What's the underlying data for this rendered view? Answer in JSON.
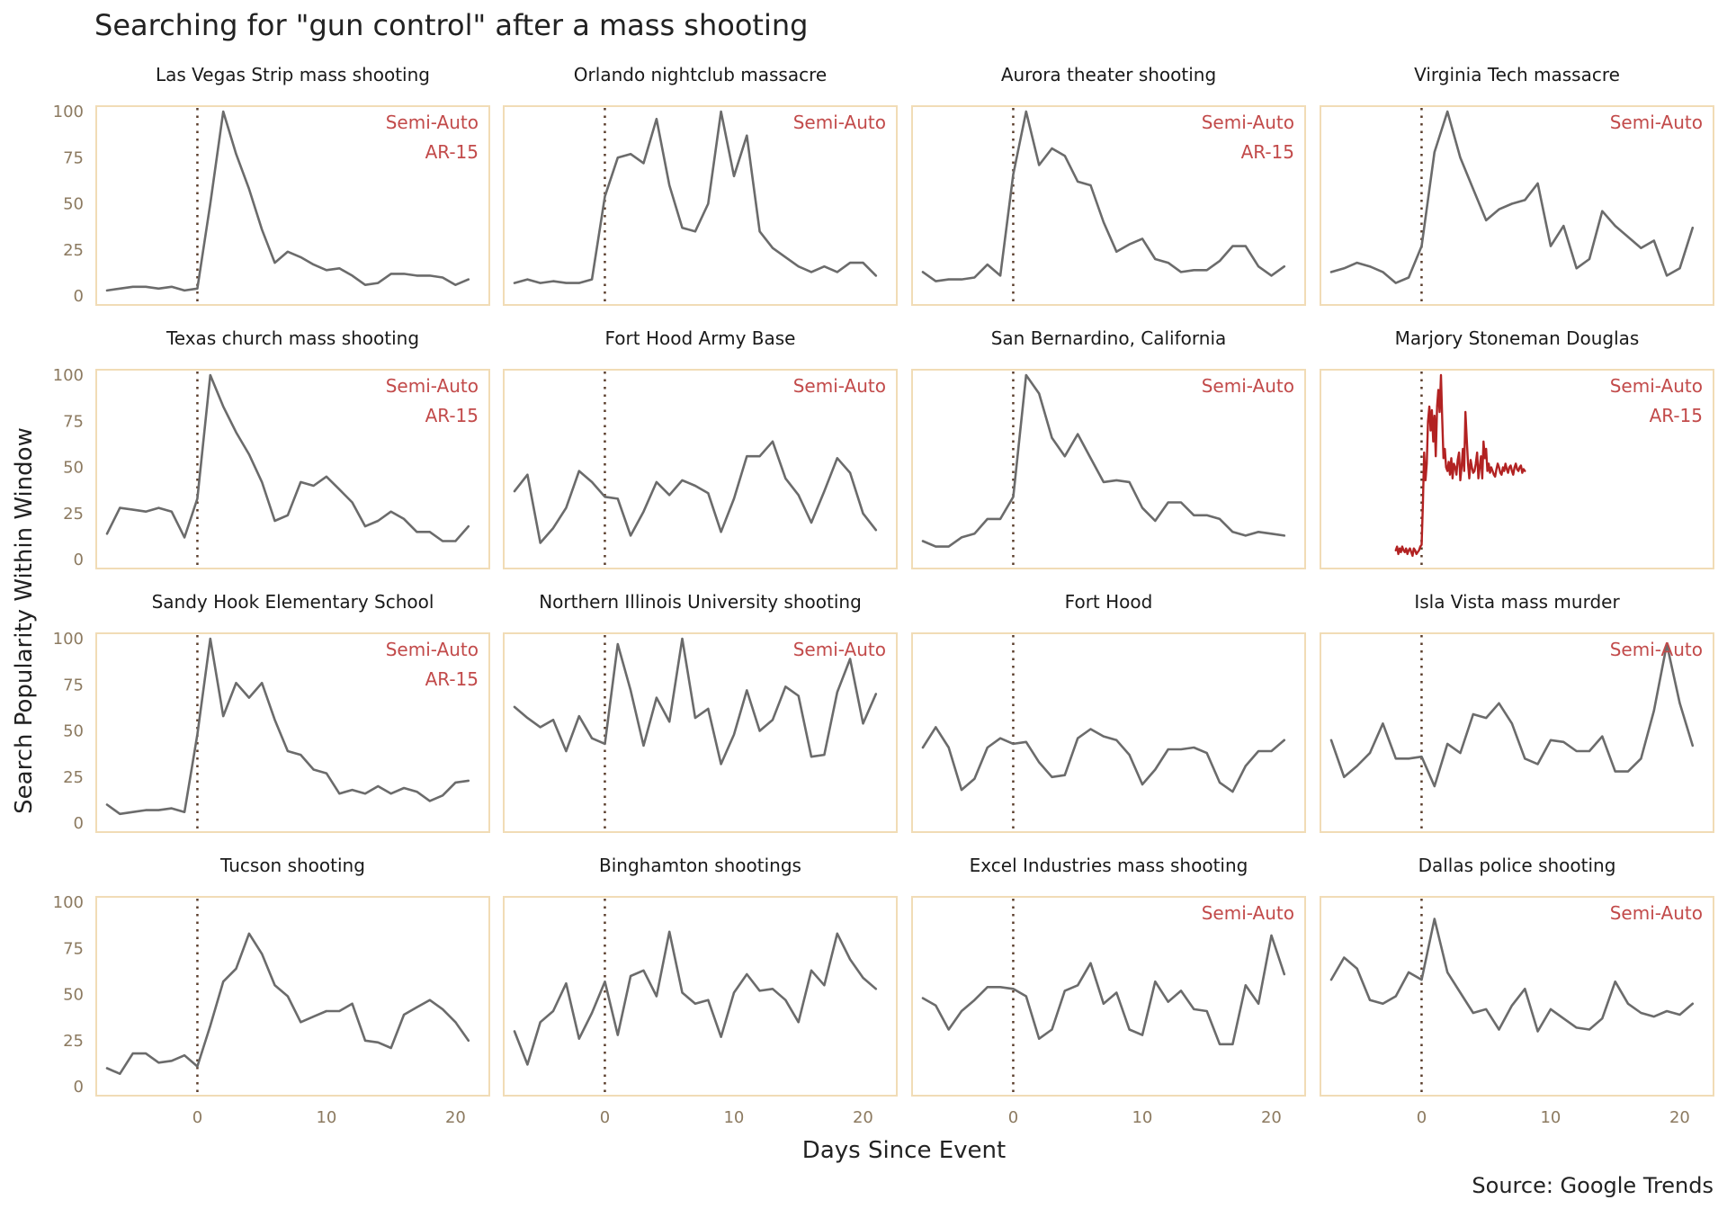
{
  "title": "Searching for \"gun control\" after a mass shooting",
  "caption": "Source: Google Trends",
  "colors": {
    "line": "#6b6b6b",
    "highlight": "#b22222",
    "note": "#c24a4a",
    "panel_border": "#f1dcb6",
    "tick_text": "#8c7a60",
    "event_marker": "#5a3d2b"
  },
  "chart_data": {
    "type": "line",
    "layout": "small-multiples",
    "xlabel": "Days Since Event",
    "ylabel": "Search Popularity Within Window",
    "xlim": [
      -8,
      22
    ],
    "ylim": [
      0,
      105
    ],
    "xticks": [
      0,
      10,
      20
    ],
    "yticks": [
      0,
      25,
      50,
      75,
      100
    ],
    "event_marker_x": 0,
    "panels": [
      {
        "title": "Las Vegas Strip mass shooting",
        "notes": [
          "Semi-Auto",
          "AR-15"
        ],
        "x": [
          -7,
          -6,
          -5,
          -4,
          -3,
          -2,
          -1,
          0,
          1,
          2,
          3,
          4,
          5,
          6,
          7,
          8,
          9,
          10,
          11,
          12,
          13,
          14,
          15,
          16,
          17,
          18,
          19,
          20,
          21
        ],
        "y": [
          3,
          4,
          5,
          5,
          4,
          5,
          3,
          4,
          50,
          100,
          77,
          58,
          36,
          18,
          24,
          21,
          17,
          14,
          15,
          11,
          6,
          7,
          12,
          12,
          11,
          11,
          10,
          6,
          9
        ]
      },
      {
        "title": "Orlando nightclub massacre",
        "notes": [
          "Semi-Auto"
        ],
        "x": [
          -7,
          -6,
          -5,
          -4,
          -3,
          -2,
          -1,
          0,
          1,
          2,
          3,
          4,
          5,
          6,
          7,
          8,
          9,
          10,
          11,
          12,
          13,
          14,
          15,
          16,
          17,
          18,
          19,
          20,
          21
        ],
        "y": [
          7,
          9,
          7,
          8,
          7,
          7,
          9,
          54,
          75,
          77,
          72,
          96,
          60,
          37,
          35,
          50,
          100,
          65,
          87,
          35,
          26,
          21,
          16,
          13,
          16,
          13,
          18,
          18,
          11
        ]
      },
      {
        "title": "Aurora theater shooting",
        "notes": [
          "Semi-Auto",
          "AR-15"
        ],
        "x": [
          -7,
          -6,
          -5,
          -4,
          -3,
          -2,
          -1,
          0,
          1,
          2,
          3,
          4,
          5,
          6,
          7,
          8,
          9,
          10,
          11,
          12,
          13,
          14,
          15,
          16,
          17,
          18,
          19,
          20,
          21
        ],
        "y": [
          13,
          8,
          9,
          9,
          10,
          17,
          11,
          66,
          100,
          71,
          80,
          76,
          62,
          60,
          40,
          24,
          28,
          31,
          20,
          18,
          13,
          14,
          14,
          19,
          27,
          27,
          16,
          11,
          16
        ]
      },
      {
        "title": "Virginia Tech massacre",
        "notes": [
          "Semi-Auto"
        ],
        "x": [
          -7,
          -6,
          -5,
          -4,
          -3,
          -2,
          -1,
          0,
          1,
          2,
          3,
          4,
          5,
          6,
          7,
          8,
          9,
          10,
          11,
          12,
          13,
          14,
          15,
          16,
          17,
          18,
          19,
          20,
          21
        ],
        "y": [
          13,
          15,
          18,
          16,
          13,
          7,
          10,
          27,
          78,
          100,
          75,
          58,
          41,
          47,
          50,
          52,
          61,
          27,
          38,
          15,
          20,
          46,
          38,
          32,
          26,
          30,
          11,
          15,
          37
        ]
      },
      {
        "title": "Texas church mass shooting",
        "notes": [
          "Semi-Auto",
          "AR-15"
        ],
        "x": [
          -7,
          -6,
          -5,
          -4,
          -3,
          -2,
          -1,
          0,
          1,
          2,
          3,
          4,
          5,
          6,
          7,
          8,
          9,
          10,
          11,
          12,
          13,
          14,
          15,
          16,
          17,
          18,
          19,
          20,
          21
        ],
        "y": [
          14,
          28,
          27,
          26,
          28,
          26,
          12,
          33,
          100,
          83,
          69,
          57,
          42,
          21,
          24,
          42,
          40,
          45,
          38,
          31,
          18,
          21,
          26,
          22,
          15,
          15,
          10,
          10,
          18
        ]
      },
      {
        "title": "Fort Hood Army Base",
        "notes": [
          "Semi-Auto"
        ],
        "x": [
          -7,
          -6,
          -5,
          -4,
          -3,
          -2,
          -1,
          0,
          1,
          2,
          3,
          4,
          5,
          6,
          7,
          8,
          9,
          10,
          11,
          12,
          13,
          14,
          15,
          16,
          17,
          18,
          19,
          20,
          21
        ],
        "y": [
          37,
          46,
          9,
          17,
          28,
          48,
          42,
          34,
          33,
          13,
          26,
          42,
          35,
          43,
          40,
          36,
          15,
          33,
          56,
          56,
          64,
          44,
          35,
          20,
          37,
          55,
          47,
          25,
          16
        ]
      },
      {
        "title": "San Bernardino, California",
        "notes": [
          "Semi-Auto"
        ],
        "x": [
          -7,
          -6,
          -5,
          -4,
          -3,
          -2,
          -1,
          0,
          1,
          2,
          3,
          4,
          5,
          6,
          7,
          8,
          9,
          10,
          11,
          12,
          13,
          14,
          15,
          16,
          17,
          18,
          19,
          20,
          21
        ],
        "y": [
          10,
          7,
          7,
          12,
          14,
          22,
          22,
          34,
          100,
          90,
          66,
          56,
          68,
          55,
          42,
          43,
          42,
          28,
          21,
          31,
          31,
          24,
          24,
          22,
          15,
          13,
          15,
          14,
          13
        ]
      },
      {
        "title": "Marjory Stoneman Douglas",
        "notes": [
          "Semi-Auto",
          "AR-15"
        ],
        "highlight": true,
        "x": [
          -2.0,
          -1.9,
          -1.8,
          -1.7,
          -1.6,
          -1.5,
          -1.4,
          -1.3,
          -1.2,
          -1.1,
          -1.0,
          -0.9,
          -0.8,
          -0.7,
          -0.6,
          -0.5,
          -0.4,
          -0.3,
          -0.2,
          -0.1,
          0.0,
          0.1,
          0.2,
          0.3,
          0.4,
          0.5,
          0.6,
          0.7,
          0.8,
          0.9,
          1.0,
          1.1,
          1.2,
          1.3,
          1.4,
          1.5,
          1.6,
          1.7,
          1.8,
          1.9,
          2.0,
          2.1,
          2.2,
          2.3,
          2.4,
          2.5,
          2.6,
          2.7,
          2.8,
          2.9,
          3.0,
          3.1,
          3.2,
          3.3,
          3.4,
          3.5,
          3.6,
          3.7,
          3.8,
          3.9,
          4.0,
          4.1,
          4.2,
          4.3,
          4.4,
          4.5,
          4.6,
          4.7,
          4.8,
          4.9,
          5.0,
          5.1,
          5.2,
          5.3,
          5.4,
          5.5,
          5.6,
          5.7,
          5.8,
          5.9,
          6.0,
          6.1,
          6.2,
          6.3,
          6.4,
          6.5,
          6.6,
          6.7,
          6.8,
          6.9,
          7.0,
          7.1,
          7.2,
          7.3,
          7.4,
          7.5,
          7.6,
          7.7,
          7.8,
          7.9,
          8.0
        ],
        "y": [
          5,
          7,
          3,
          6,
          4,
          7,
          5,
          4,
          6,
          3,
          5,
          6,
          4,
          2,
          6,
          5,
          3,
          4,
          5,
          7,
          8,
          30,
          58,
          43,
          52,
          75,
          83,
          70,
          81,
          64,
          78,
          56,
          83,
          92,
          80,
          100,
          76,
          55,
          60,
          50,
          48,
          53,
          46,
          55,
          44,
          52,
          50,
          46,
          54,
          58,
          43,
          50,
          60,
          48,
          80,
          65,
          52,
          44,
          54,
          50,
          47,
          48,
          52,
          58,
          44,
          50,
          56,
          44,
          64,
          55,
          60,
          48,
          52,
          47,
          50,
          48,
          46,
          45,
          49,
          52,
          50,
          47,
          46,
          50,
          48,
          52,
          49,
          47,
          50,
          51,
          48,
          46,
          50,
          52,
          49,
          48,
          50,
          51,
          47,
          49,
          48
        ]
      },
      {
        "title": "Sandy Hook Elementary School",
        "notes": [
          "Semi-Auto",
          "AR-15"
        ],
        "x": [
          -7,
          -6,
          -5,
          -4,
          -3,
          -2,
          -1,
          0,
          1,
          2,
          3,
          4,
          5,
          6,
          7,
          8,
          9,
          10,
          11,
          12,
          13,
          14,
          15,
          16,
          17,
          18,
          19,
          20,
          21
        ],
        "y": [
          10,
          5,
          6,
          7,
          7,
          8,
          6,
          48,
          100,
          58,
          76,
          68,
          76,
          56,
          39,
          37,
          29,
          27,
          16,
          18,
          16,
          20,
          16,
          19,
          17,
          12,
          15,
          22,
          23
        ]
      },
      {
        "title": "Northern Illinois University shooting",
        "notes": [
          "Semi-Auto"
        ],
        "x": [
          -7,
          -6,
          -5,
          -4,
          -3,
          -2,
          -1,
          0,
          1,
          2,
          3,
          4,
          5,
          6,
          7,
          8,
          9,
          10,
          11,
          12,
          13,
          14,
          15,
          16,
          17,
          18,
          19,
          20,
          21
        ],
        "y": [
          63,
          57,
          52,
          56,
          39,
          58,
          46,
          43,
          97,
          72,
          42,
          68,
          55,
          100,
          57,
          62,
          32,
          48,
          72,
          50,
          56,
          74,
          69,
          36,
          37,
          71,
          89,
          54,
          70
        ]
      },
      {
        "title": "Fort Hood",
        "notes": [],
        "x": [
          -7,
          -6,
          -5,
          -4,
          -3,
          -2,
          -1,
          0,
          1,
          2,
          3,
          4,
          5,
          6,
          7,
          8,
          9,
          10,
          11,
          12,
          13,
          14,
          15,
          16,
          17,
          18,
          19,
          20,
          21
        ],
        "y": [
          41,
          52,
          41,
          18,
          24,
          41,
          46,
          43,
          44,
          33,
          25,
          26,
          46,
          51,
          47,
          45,
          37,
          21,
          29,
          40,
          40,
          41,
          38,
          22,
          17,
          31,
          39,
          39,
          45
        ]
      },
      {
        "title": "Isla Vista mass murder",
        "notes": [
          "Semi-Auto"
        ],
        "x": [
          -7,
          -6,
          -5,
          -4,
          -3,
          -2,
          -1,
          0,
          1,
          2,
          3,
          4,
          5,
          6,
          7,
          8,
          9,
          10,
          11,
          12,
          13,
          14,
          15,
          16,
          17,
          18,
          19,
          20,
          21
        ],
        "y": [
          45,
          25,
          31,
          38,
          54,
          35,
          35,
          36,
          20,
          43,
          38,
          59,
          57,
          65,
          54,
          35,
          32,
          45,
          44,
          39,
          39,
          47,
          28,
          28,
          35,
          61,
          97,
          65,
          42
        ]
      },
      {
        "title": "Tucson shooting",
        "notes": [],
        "x": [
          -7,
          -6,
          -5,
          -4,
          -3,
          -2,
          -1,
          0,
          1,
          2,
          3,
          4,
          5,
          6,
          7,
          8,
          9,
          10,
          11,
          12,
          13,
          14,
          15,
          16,
          17,
          18,
          19,
          20,
          21
        ],
        "y": [
          10,
          7,
          18,
          18,
          13,
          14,
          17,
          11,
          33,
          57,
          64,
          83,
          72,
          55,
          49,
          35,
          38,
          41,
          41,
          45,
          25,
          24,
          21,
          39,
          43,
          47,
          42,
          35,
          25
        ]
      },
      {
        "title": "Binghamton shootings",
        "notes": [],
        "x": [
          -7,
          -6,
          -5,
          -4,
          -3,
          -2,
          -1,
          0,
          1,
          2,
          3,
          4,
          5,
          6,
          7,
          8,
          9,
          10,
          11,
          12,
          13,
          14,
          15,
          16,
          17,
          18,
          19,
          20,
          21
        ],
        "y": [
          30,
          12,
          35,
          41,
          56,
          26,
          40,
          57,
          28,
          60,
          63,
          49,
          84,
          51,
          45,
          47,
          27,
          51,
          61,
          52,
          53,
          47,
          35,
          63,
          55,
          83,
          69,
          59,
          53
        ]
      },
      {
        "title": "Excel Industries mass shooting",
        "notes": [
          "Semi-Auto"
        ],
        "x": [
          -7,
          -6,
          -5,
          -4,
          -3,
          -2,
          -1,
          0,
          1,
          2,
          3,
          4,
          5,
          6,
          7,
          8,
          9,
          10,
          11,
          12,
          13,
          14,
          15,
          16,
          17,
          18,
          19,
          20,
          21
        ],
        "y": [
          48,
          44,
          31,
          41,
          47,
          54,
          54,
          53,
          49,
          26,
          31,
          52,
          55,
          67,
          45,
          51,
          31,
          28,
          57,
          46,
          52,
          42,
          41,
          23,
          23,
          55,
          45,
          82,
          61
        ]
      },
      {
        "title": "Dallas police shooting",
        "notes": [
          "Semi-Auto"
        ],
        "x": [
          -7,
          -6,
          -5,
          -4,
          -3,
          -2,
          -1,
          0,
          1,
          2,
          3,
          4,
          5,
          6,
          7,
          8,
          9,
          10,
          11,
          12,
          13,
          14,
          15,
          16,
          17,
          18,
          19,
          20,
          21
        ],
        "y": [
          58,
          70,
          64,
          47,
          45,
          49,
          62,
          58,
          91,
          62,
          51,
          40,
          42,
          31,
          44,
          53,
          30,
          42,
          37,
          32,
          31,
          37,
          57,
          45,
          40,
          38,
          41,
          39,
          45
        ]
      }
    ]
  }
}
